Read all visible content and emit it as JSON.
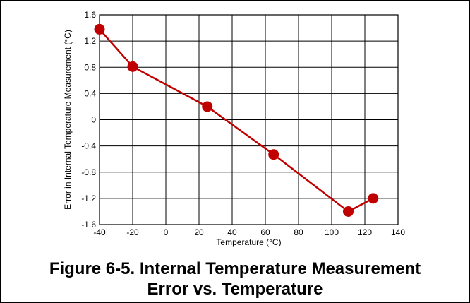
{
  "chart_data": {
    "type": "line",
    "title_line1": "Figure 6-5. Internal Temperature Measurement",
    "title_line2": "Error vs. Temperature",
    "xlabel": "Temperature (°C)",
    "ylabel": "Error in Internal Temperature Measurement (°C)",
    "xlim": [
      -40,
      140
    ],
    "ylim": [
      -1.6,
      1.6
    ],
    "x_ticks": [
      -40,
      -20,
      0,
      20,
      40,
      60,
      80,
      100,
      120,
      140
    ],
    "x_tick_labels": [
      "-40",
      "-20",
      "0",
      "20",
      "40",
      "60",
      "80",
      "100",
      "120",
      "140"
    ],
    "y_ticks": [
      -1.6,
      -1.2,
      -0.8,
      -0.4,
      0,
      0.4,
      0.8,
      1.2,
      1.6
    ],
    "y_tick_labels": [
      "-1.6",
      "-1.2",
      "-0.8",
      "-0.4",
      "0",
      "0.4",
      "0.8",
      "1.2",
      "1.6"
    ],
    "grid": true,
    "series": [
      {
        "color": "#c00000",
        "x": [
          -40,
          -20,
          25,
          65,
          110,
          125
        ],
        "y": [
          1.38,
          0.81,
          0.2,
          -0.53,
          -1.4,
          -1.2
        ]
      }
    ]
  }
}
